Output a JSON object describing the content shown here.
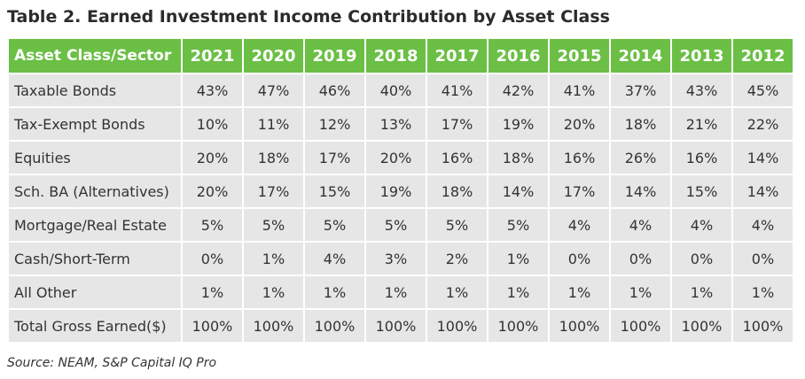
{
  "title": "Table 2. Earned Investment Income Contribution by Asset Class",
  "table": {
    "columns": [
      "Asset Class/Sector",
      "2021",
      "2020",
      "2019",
      "2018",
      "2017",
      "2016",
      "2015",
      "2014",
      "2013",
      "2012"
    ],
    "rows": [
      {
        "label": "Taxable Bonds",
        "values": [
          "43%",
          "47%",
          "46%",
          "40%",
          "41%",
          "42%",
          "41%",
          "37%",
          "43%",
          "45%"
        ]
      },
      {
        "label": "Tax-Exempt Bonds",
        "values": [
          "10%",
          "11%",
          "12%",
          "13%",
          "17%",
          "19%",
          "20%",
          "18%",
          "21%",
          "22%"
        ]
      },
      {
        "label": "Equities",
        "values": [
          "20%",
          "18%",
          "17%",
          "20%",
          "16%",
          "18%",
          "16%",
          "26%",
          "16%",
          "14%"
        ]
      },
      {
        "label": "Sch. BA (Alternatives)",
        "values": [
          "20%",
          "17%",
          "15%",
          "19%",
          "18%",
          "14%",
          "17%",
          "14%",
          "15%",
          "14%"
        ]
      },
      {
        "label": "Mortgage/Real Estate",
        "values": [
          "5%",
          "5%",
          "5%",
          "5%",
          "5%",
          "5%",
          "4%",
          "4%",
          "4%",
          "4%"
        ]
      },
      {
        "label": "Cash/Short-Term",
        "values": [
          "0%",
          "1%",
          "4%",
          "3%",
          "2%",
          "1%",
          "0%",
          "0%",
          "0%",
          "0%"
        ]
      },
      {
        "label": "All Other",
        "values": [
          "1%",
          "1%",
          "1%",
          "1%",
          "1%",
          "1%",
          "1%",
          "1%",
          "1%",
          "1%"
        ]
      },
      {
        "label": "Total Gross Earned($)",
        "values": [
          "100%",
          "100%",
          "100%",
          "100%",
          "100%",
          "100%",
          "100%",
          "100%",
          "100%",
          "100%"
        ]
      }
    ]
  },
  "source": "Source: NEAM, S&P Capital IQ Pro",
  "colors": {
    "header_bg": "#6bbf45",
    "header_text": "#ffffff",
    "cell_bg": "#e6e6e6",
    "text": "#333333"
  }
}
